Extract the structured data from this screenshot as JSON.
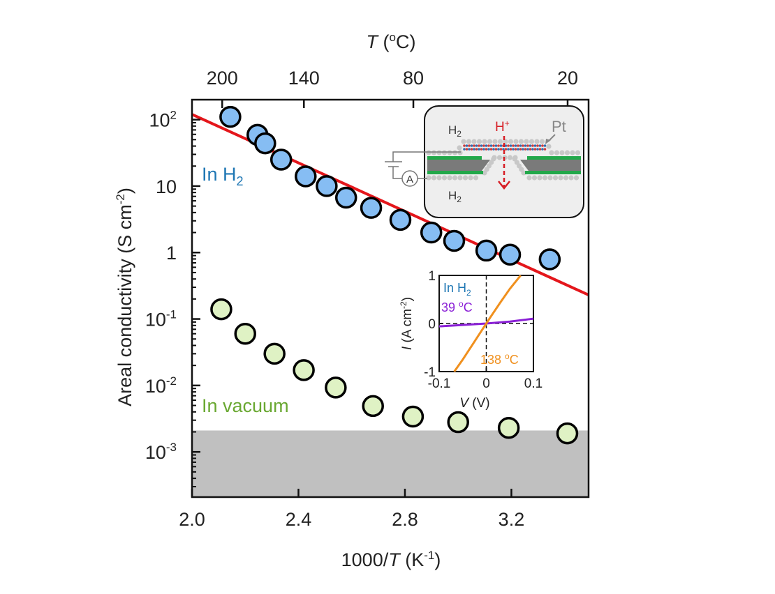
{
  "chart_data": {
    "type": "scatter",
    "title": "",
    "xlabel": "1000/T (K-1)",
    "xlabel_parts": {
      "pre": "1000/",
      "italic": "T",
      "post": " (K",
      "sup": "-1",
      "close": ")"
    },
    "ylabel": "Areal conductivity (S cm-2)",
    "ylabel_parts": {
      "pre": "Areal conductivity (S cm",
      "sup": "-2",
      "close": ")"
    },
    "top_xlabel": "T (oC)",
    "top_xlabel_parts": {
      "italic": "T",
      "pre": " (",
      "sup": "o",
      "post": "C)"
    },
    "xlim": [
      2.0,
      3.49
    ],
    "ylim_log10": [
      -3.68,
      2.3
    ],
    "y_scale": "log",
    "x_ticks": [
      {
        "value": 2.0,
        "label": "2.0"
      },
      {
        "value": 2.4,
        "label": "2.4"
      },
      {
        "value": 2.8,
        "label": "2.8"
      },
      {
        "value": 3.2,
        "label": "3.2"
      }
    ],
    "y_ticks": [
      {
        "log10": 2,
        "base": "10",
        "sup": "2"
      },
      {
        "log10": 1,
        "base": "10",
        "sup": ""
      },
      {
        "log10": 0,
        "base": "1",
        "sup": ""
      },
      {
        "log10": -1,
        "base": "10",
        "sup": "-1"
      },
      {
        "log10": -2,
        "base": "10",
        "sup": "-2"
      },
      {
        "log10": -3,
        "base": "10",
        "sup": "-3"
      }
    ],
    "top_ticks": [
      {
        "celsius": 200,
        "label": "200"
      },
      {
        "celsius": 140,
        "label": "140"
      },
      {
        "celsius": 80,
        "label": "80"
      },
      {
        "celsius": 20,
        "label": "20"
      }
    ],
    "series": [
      {
        "name": "In H2",
        "label_main": "In H",
        "label_sub": "2",
        "color": "#1f77b4",
        "fill": "#86bdf3",
        "x": [
          2.144,
          2.246,
          2.275,
          2.335,
          2.427,
          2.506,
          2.579,
          2.673,
          2.783,
          2.899,
          2.985,
          3.106,
          3.195,
          3.344
        ],
        "y": [
          110,
          59,
          44,
          25,
          14,
          10,
          6.7,
          4.7,
          3.1,
          2.0,
          1.5,
          1.07,
          0.93,
          0.79
        ]
      },
      {
        "name": "In vacuum",
        "label_main": "In vacuum",
        "label_sub": "",
        "color": "#6aa832",
        "fill": "#dff2c4",
        "x": [
          2.11,
          2.2,
          2.31,
          2.42,
          2.54,
          2.68,
          2.83,
          3.0,
          3.19,
          3.41
        ],
        "y": [
          0.14,
          0.06,
          0.03,
          0.017,
          0.0093,
          0.0049,
          0.0034,
          0.0028,
          0.0023,
          0.0019
        ]
      }
    ],
    "fit_line": {
      "color": "#e4161b",
      "x": [
        2.0,
        3.49
      ],
      "y": [
        120,
        0.23
      ]
    },
    "shaded_region": {
      "color": "#c0c0c0",
      "y_below": 0.0021
    },
    "inset_iv": {
      "xlim": [
        -0.1,
        0.1
      ],
      "ylim": [
        -1,
        1
      ],
      "xlabel_italic": "V",
      "xlabel_rest": " (V)",
      "ylabel_italic": "I",
      "ylabel_rest": " (A cm",
      "ylabel_sup": "-2",
      "ylabel_close": ")",
      "x_ticks": [
        {
          "value": -0.1,
          "label": "-0.1"
        },
        {
          "value": 0,
          "label": "0"
        },
        {
          "value": 0.1,
          "label": "0.1"
        }
      ],
      "y_ticks": [
        {
          "value": 1,
          "label": "1"
        },
        {
          "value": 0,
          "label": "0"
        },
        {
          "value": -1,
          "label": "-1"
        }
      ],
      "condition_main": "In H",
      "condition_sub": "2",
      "condition_color": "#1f77b4",
      "curves": [
        {
          "name": "39 oC",
          "label_num": "39 ",
          "label_sup": "o",
          "label_unit": "C",
          "color": "#8a1fd6",
          "x": [
            -0.1,
            -0.05,
            0,
            0.05,
            0.1
          ],
          "y": [
            -0.06,
            -0.03,
            0.0,
            0.04,
            0.1
          ]
        },
        {
          "name": "138 oC",
          "label_num": "138 ",
          "label_sup": "o",
          "label_unit": "C",
          "color": "#f0901e",
          "x": [
            -0.068,
            -0.05,
            -0.03,
            -0.01,
            0,
            0.01,
            0.03,
            0.05,
            0.073
          ],
          "y": [
            -1,
            -0.75,
            -0.45,
            -0.15,
            0,
            0.15,
            0.44,
            0.72,
            1
          ]
        }
      ]
    },
    "schematic": {
      "top_gas_main": "H",
      "top_gas_sub": "2",
      "bottom_gas_main": "H",
      "bottom_gas_sub": "2",
      "proton_main": "H",
      "proton_sup": "+",
      "proton_color": "#d71f26",
      "electrode_label": "Pt",
      "ammeter_label": "A",
      "membrane_color": "#22a84a",
      "substrate_color": "#7a7a7a",
      "pt_color": "#c8c8c8"
    }
  }
}
